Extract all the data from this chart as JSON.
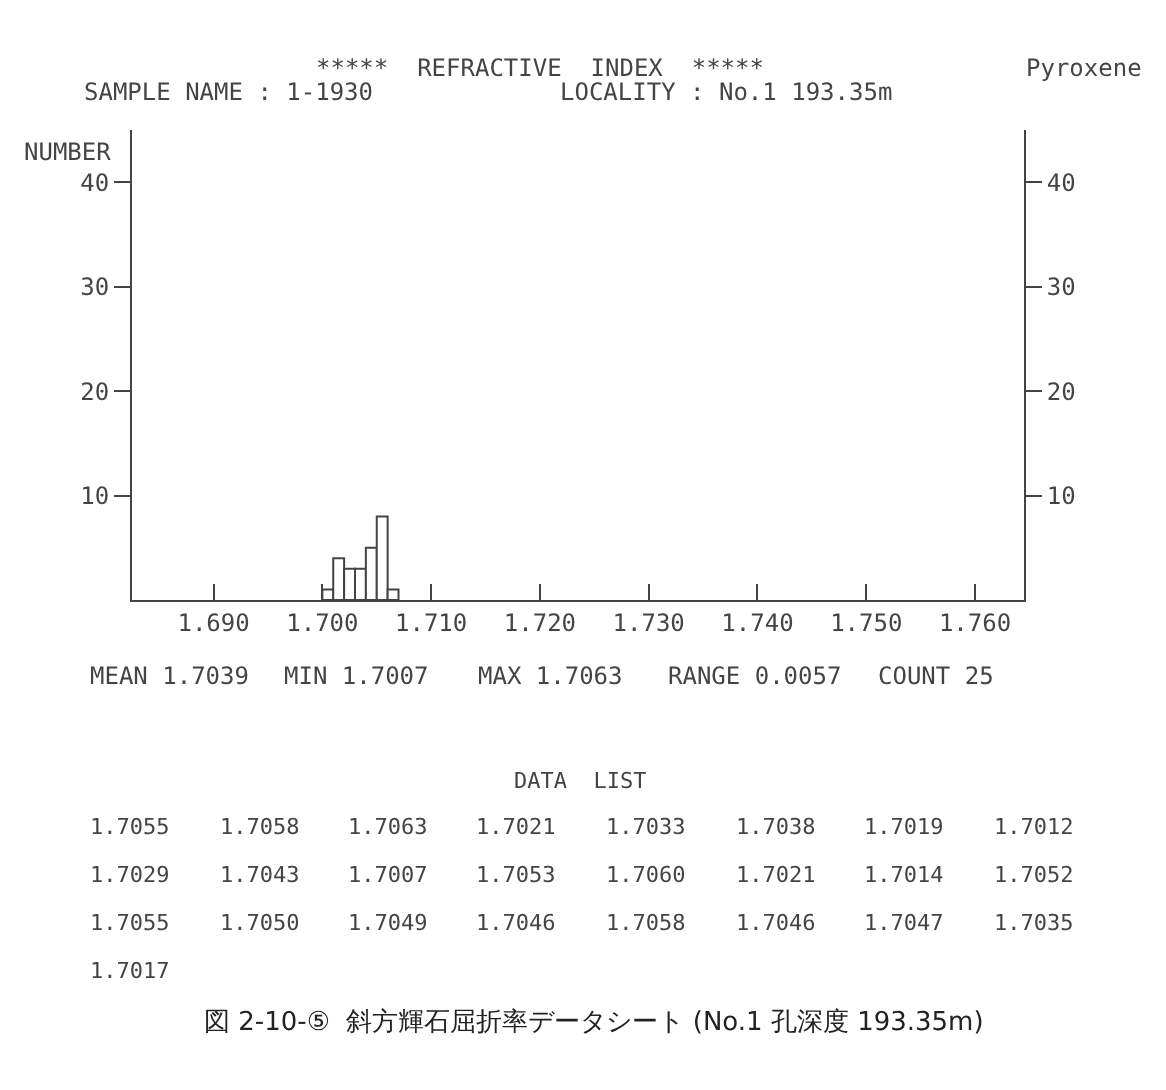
{
  "chart_data": {
    "type": "histogram",
    "title": "*****  REFRACTIVE  INDEX  *****",
    "subtitle": "SAMPLE NAME : 1-1930",
    "ylabel": "NUMBER",
    "bins": [
      1.7,
      1.701,
      1.702,
      1.703,
      1.704,
      1.705,
      1.706,
      1.707
    ],
    "values": [
      1,
      4,
      3,
      3,
      5,
      8,
      1
    ],
    "color": "#ffffff",
    "xlim": [
      1.6825,
      1.7645
    ],
    "xticks": [
      {
        "value": 1.69,
        "label": "1.690"
      },
      {
        "value": 1.7,
        "label": "1.700"
      },
      {
        "value": 1.71,
        "label": "1.710"
      },
      {
        "value": 1.72,
        "label": "1.720"
      },
      {
        "value": 1.73,
        "label": "1.730"
      },
      {
        "value": 1.74,
        "label": "1.740"
      },
      {
        "value": 1.75,
        "label": "1.750"
      },
      {
        "value": 1.76,
        "label": "1.760"
      }
    ],
    "ylim": [
      0,
      45
    ],
    "yticks": [
      10,
      20,
      30,
      40
    ],
    "y2lim": [
      0,
      45
    ],
    "y2ticks": [
      10,
      20,
      30,
      40
    ],
    "grid": false,
    "annotations": [
      "LOCALITY : No.1 193.35m",
      "Pyroxene",
      "MEAN 1.7039",
      "MIN 1.7007",
      "MAX 1.7063",
      "RANGE 0.0057",
      "COUNT 25",
      "DATA  LIST",
      "1.7055",
      "1.7058",
      "1.7063",
      "1.7021",
      "1.7033",
      "1.7038",
      "1.7019",
      "1.7012",
      "1.7029",
      "1.7043",
      "1.7007",
      "1.7053",
      "1.7060",
      "1.7021",
      "1.7014",
      "1.7052",
      "1.7055",
      "1.7050",
      "1.7049",
      "1.7046",
      "1.7058",
      "1.7046",
      "1.7047",
      "1.7035",
      "1.7017",
      "図 2-10-⑤  斜方輝石屈折率データシート (No.1 孔深度 193.35m)"
    ]
  }
}
